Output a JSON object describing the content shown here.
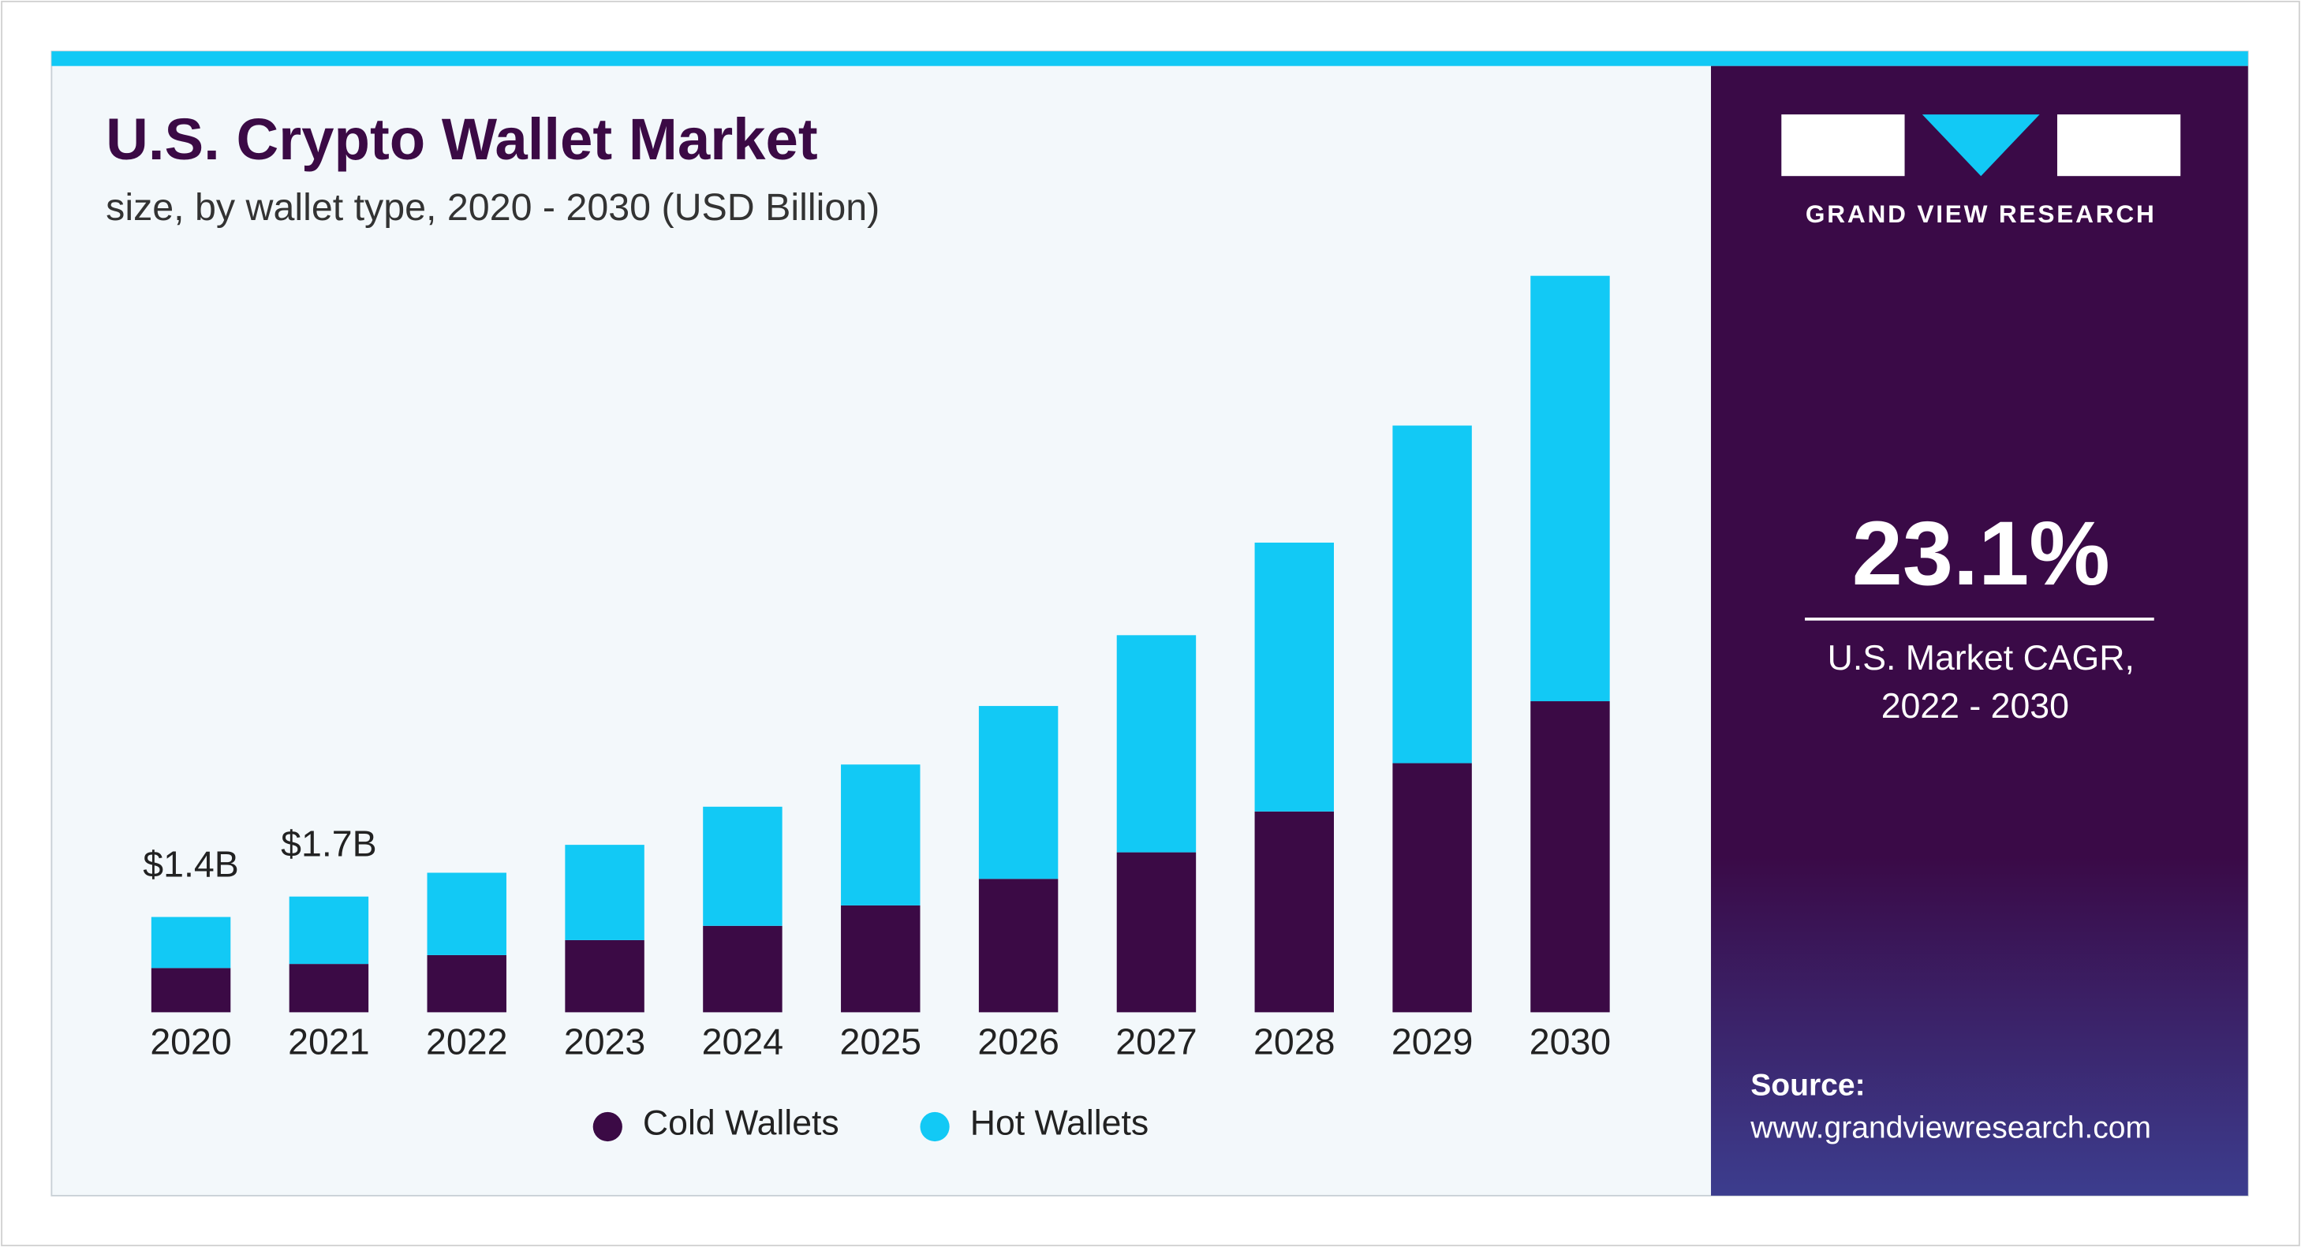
{
  "chart_data": {
    "type": "stacked_bar",
    "title": "U.S. Crypto Wallet Market",
    "subtitle": "size, by wallet type, 2020 - 2030 (USD Billion)",
    "categories": [
      "2020",
      "2021",
      "2022",
      "2023",
      "2024",
      "2025",
      "2026",
      "2027",
      "2028",
      "2029",
      "2030"
    ],
    "series": [
      {
        "name": "Cold Wallets",
        "color": "#3b0a45",
        "values": [
          0.65,
          0.71,
          0.84,
          1.06,
          1.27,
          1.57,
          1.96,
          2.35,
          2.95,
          3.66,
          4.57
        ]
      },
      {
        "name": "Hot Wallets",
        "color": "#12c9f5",
        "values": [
          0.75,
          0.99,
          1.21,
          1.4,
          1.75,
          2.07,
          2.54,
          3.19,
          3.95,
          4.96,
          6.25
        ]
      }
    ],
    "annotations": [
      {
        "text": "$1.4B",
        "value": 1.4,
        "category": 0
      },
      {
        "text": "$1.7B",
        "value": 1.7,
        "category": 1
      }
    ],
    "legend": "bottom"
  },
  "side_panel": {
    "brand": "GRAND VIEW RESEARCH",
    "cagr": "23.1%",
    "cagr_label": [
      "U.S. Market CAGR,",
      "2022 - 2030"
    ],
    "source_label": "Source:",
    "source_url": "www.grandviewresearch.com"
  }
}
